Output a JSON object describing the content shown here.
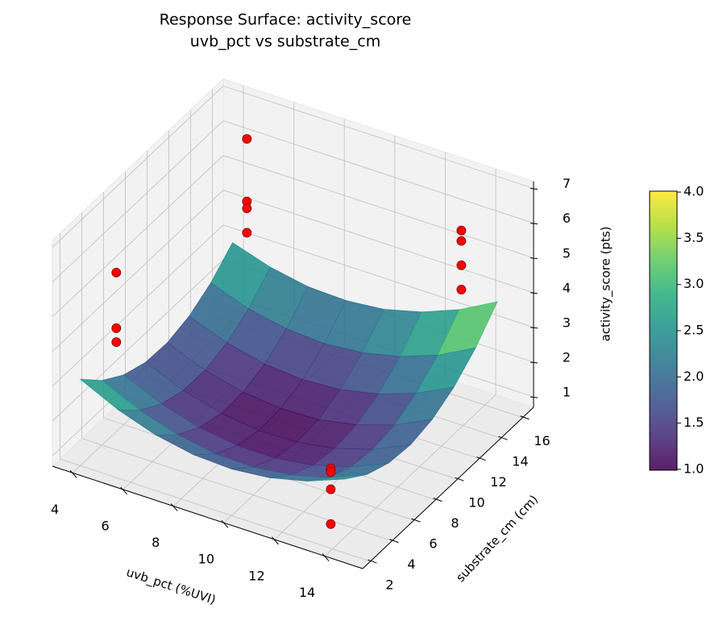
{
  "chart_data": {
    "type": "surface3d",
    "title": "Response Surface: activity_score",
    "subtitle": "uvb_pct vs substrate_cm",
    "x_label": "uvb_pct (%UVI)",
    "y_label": "substrate_cm (cm)",
    "z_label": "activity_score (pts)",
    "xlim": [
      3.2,
      15.5
    ],
    "ylim": [
      1.3,
      17
    ],
    "zlim": [
      0.7,
      7.2
    ],
    "xticks": [
      4,
      6,
      8,
      10,
      12,
      14
    ],
    "yticks": [
      2,
      4,
      6,
      8,
      10,
      12,
      14,
      16
    ],
    "zticks": [
      1,
      2,
      3,
      4,
      5,
      6,
      7
    ],
    "grid": true,
    "colormap": "viridis",
    "surface": {
      "x": [
        4,
        5.5,
        7,
        8.5,
        10,
        11.5,
        13,
        14.5
      ],
      "y": [
        2,
        4,
        6,
        8,
        10,
        12,
        14,
        16
      ],
      "z": [
        [
          3.19,
          2.67,
          2.3,
          2.09,
          2.04,
          2.15,
          2.41,
          2.83
        ],
        [
          2.56,
          2.06,
          1.72,
          1.53,
          1.51,
          1.64,
          1.92,
          2.37
        ],
        [
          2.13,
          1.66,
          1.34,
          1.18,
          1.17,
          1.33,
          1.64,
          2.11
        ],
        [
          1.9,
          1.45,
          1.15,
          1.02,
          1.04,
          1.22,
          1.55,
          2.04
        ],
        [
          1.87,
          1.44,
          1.17,
          1.06,
          1.1,
          1.31,
          1.66,
          2.18
        ],
        [
          2.04,
          1.64,
          1.39,
          1.3,
          1.37,
          1.6,
          1.98,
          2.52
        ],
        [
          2.41,
          2.03,
          1.81,
          1.74,
          1.84,
          2.09,
          2.49,
          3.06
        ],
        [
          2.98,
          2.63,
          2.43,
          2.39,
          2.5,
          2.78,
          3.21,
          3.8
        ]
      ]
    },
    "scatter": {
      "color": "#ff0000",
      "x": [
        5,
        5,
        5,
        5,
        5,
        5,
        5,
        13.5,
        13.5,
        13.5,
        13.5,
        13.5,
        13.5,
        13.5,
        13.5
      ],
      "y": [
        3,
        3,
        3,
        15,
        15,
        15,
        15,
        15,
        15,
        15,
        15,
        3,
        3,
        3,
        3
      ],
      "z": [
        6.2,
        4.6,
        4.2,
        6.5,
        4.7,
        4.5,
        3.8,
        5.9,
        5.6,
        4.9,
        4.2,
        2.6,
        2.5,
        2.0,
        1.0
      ]
    },
    "colorbar": {
      "lim": [
        0.99,
        4.01
      ],
      "ticks": [
        {
          "value": 1,
          "label": "1.0"
        },
        {
          "value": 1.5,
          "label": "1.5"
        },
        {
          "value": 2,
          "label": "2.0"
        },
        {
          "value": 2.5,
          "label": "2.5"
        },
        {
          "value": 3,
          "label": "3.0"
        },
        {
          "value": 3.5,
          "label": "3.5"
        },
        {
          "value": 4,
          "label": "4.0"
        }
      ]
    }
  }
}
